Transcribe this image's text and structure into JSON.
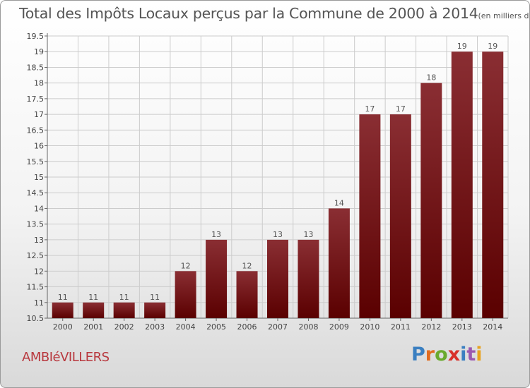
{
  "header": {
    "title": "Total des Impôts Locaux perçus par la Commune de 2000 à 2014",
    "unit": "(en milliers d'€)"
  },
  "footer": {
    "commune": "AMBIéVILLERS",
    "logo_text": "Proxiti",
    "logo_colors": [
      "#3a7fc1",
      "#e06b1f",
      "#6aaa2e",
      "#d8302a",
      "#3a7fc1",
      "#9b57b0",
      "#e8a21f"
    ]
  },
  "colors": {
    "bar_top": "#8a2e33",
    "bar_bottom": "#5a0000",
    "grid": "#cccccc"
  },
  "chart_data": {
    "type": "bar",
    "title": "Total des Impôts Locaux perçus par la Commune de 2000 à 2014",
    "unit": "en milliers d'€",
    "categories": [
      "2000",
      "2001",
      "2002",
      "2003",
      "2004",
      "2005",
      "2006",
      "2007",
      "2008",
      "2009",
      "2010",
      "2011",
      "2012",
      "2013",
      "2014"
    ],
    "values": [
      11,
      11,
      11,
      11,
      12,
      13,
      12,
      13,
      13,
      14,
      17,
      17,
      18,
      19,
      19
    ],
    "ylim": [
      10.5,
      19.5
    ],
    "yticks": [
      "10.5",
      "11",
      "11.5",
      "12",
      "12.5",
      "13",
      "13.5",
      "14",
      "14.5",
      "15",
      "15.5",
      "16",
      "16.5",
      "17",
      "17.5",
      "18",
      "18.5",
      "19",
      "19.5"
    ],
    "grid": true,
    "xlabel": "",
    "ylabel": ""
  }
}
